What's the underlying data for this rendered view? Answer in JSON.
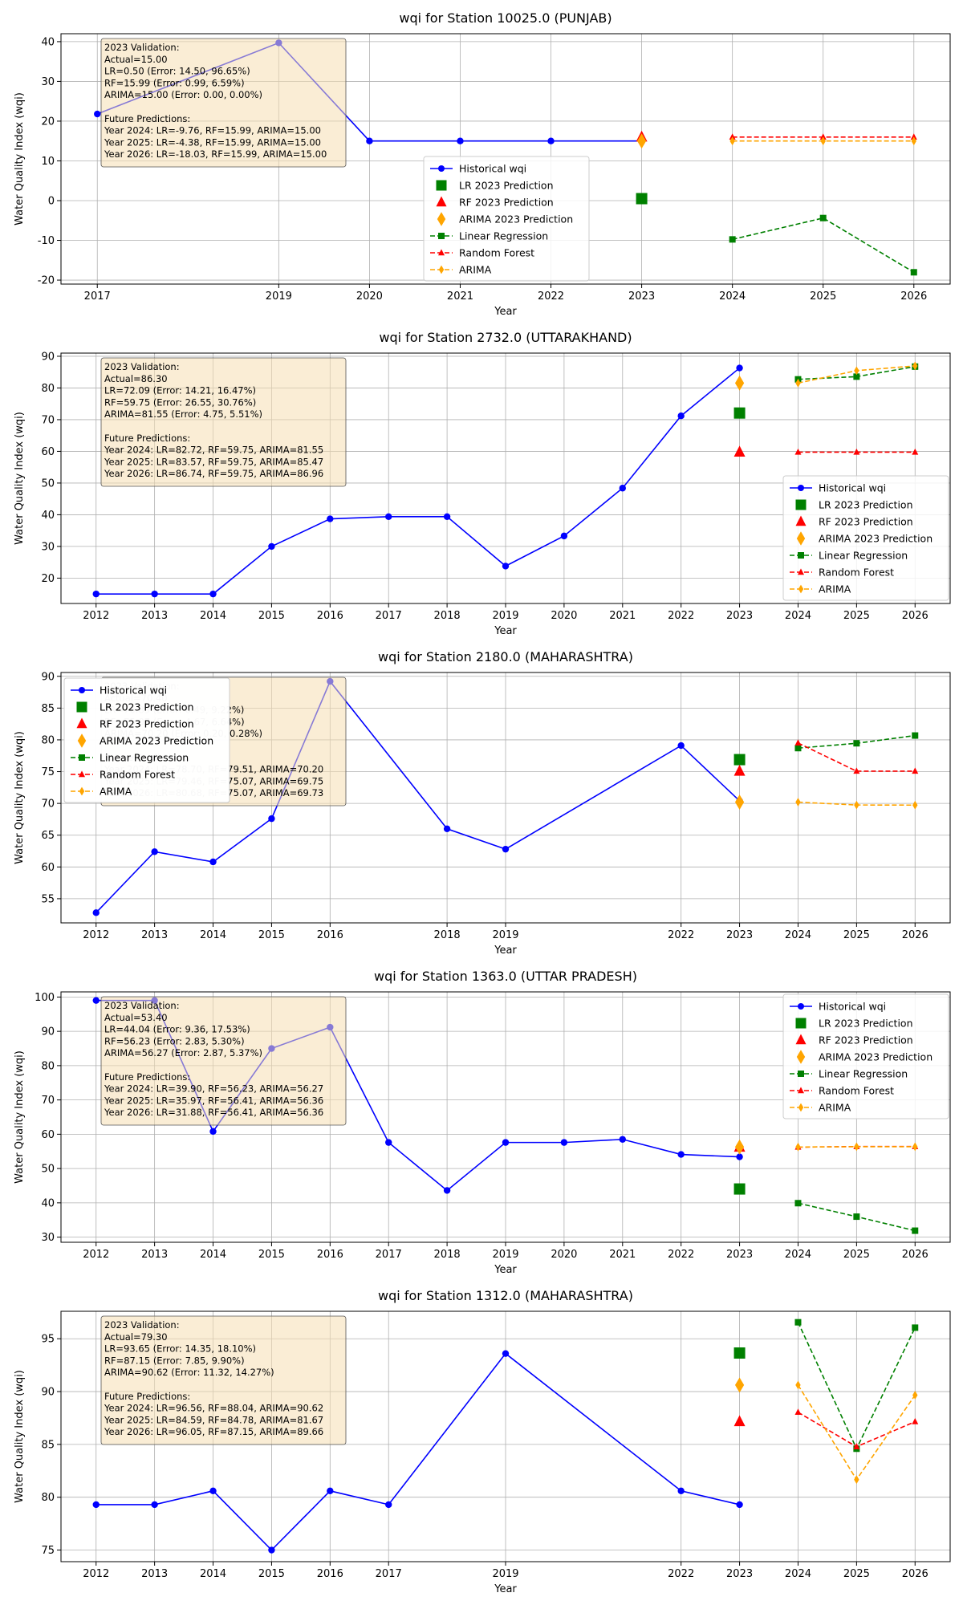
{
  "figure": {
    "background": "#ffffff"
  },
  "colors": {
    "historical": "#0000ff",
    "lr": "#008000",
    "rf": "#ff0000",
    "arima": "#ffa500",
    "textbox_bg": "#f5deb3",
    "grid": "#b0b0b0"
  },
  "chart_data": [
    {
      "type": "line",
      "title": "wqi for Station 10025.0 (PUNJAB)",
      "xlabel": "Year",
      "ylabel": "Water Quality Index (wqi)",
      "xlim": [
        2016.6,
        2026.4
      ],
      "ylim": [
        -21,
        42
      ],
      "xticks": [
        2017,
        2019,
        2020,
        2021,
        2022,
        2023,
        2024,
        2025,
        2026
      ],
      "yticks": [
        -20,
        -10,
        0,
        10,
        20,
        30,
        40
      ],
      "grid": true,
      "legend_loc": "lower-center",
      "textbox_loc": "top-left",
      "textbox": [
        "2023 Validation:",
        "Actual=15.00",
        "LR=0.50 (Error: 14.50, 96.65%)",
        "RF=15.99 (Error: 0.99, 6.59%)",
        "ARIMA=15.00 (Error: 0.00, 0.00%)",
        "",
        "Future Predictions:",
        "Year 2024: LR=-9.76, RF=15.99, ARIMA=15.00",
        "Year 2025: LR=-4.38, RF=15.99, ARIMA=15.00",
        "Year 2026: LR=-18.03, RF=15.99, ARIMA=15.00"
      ],
      "historical": {
        "name": "Historical wqi",
        "x": [
          2017,
          2019,
          2020,
          2021,
          2022,
          2023
        ],
        "y": [
          21.8,
          39.7,
          15.0,
          15.0,
          15.0,
          15.0
        ]
      },
      "pred2023": [
        {
          "name": "LR 2023 Prediction",
          "y": 0.5
        },
        {
          "name": "RF 2023 Prediction",
          "y": 15.99
        },
        {
          "name": "ARIMA 2023 Prediction",
          "y": 15.0
        }
      ],
      "future": {
        "x": [
          2024,
          2025,
          2026
        ],
        "series": [
          {
            "name": "Linear Regression",
            "values": [
              -9.76,
              -4.38,
              -18.03
            ]
          },
          {
            "name": "Random Forest",
            "values": [
              15.99,
              15.99,
              15.99
            ]
          },
          {
            "name": "ARIMA",
            "values": [
              15.0,
              15.0,
              15.0
            ]
          }
        ]
      }
    },
    {
      "type": "line",
      "title": "wqi for Station 2732.0 (UTTARAKHAND)",
      "xlabel": "Year",
      "ylabel": "Water Quality Index (wqi)",
      "xlim": [
        2011.4,
        2026.6
      ],
      "ylim": [
        12,
        91
      ],
      "xticks": [
        2012,
        2013,
        2014,
        2015,
        2016,
        2017,
        2018,
        2019,
        2020,
        2021,
        2022,
        2023,
        2024,
        2025,
        2026
      ],
      "yticks": [
        20,
        30,
        40,
        50,
        60,
        70,
        80,
        90
      ],
      "grid": true,
      "legend_loc": "lower-right",
      "textbox_loc": "top-left",
      "textbox": [
        "2023 Validation:",
        "Actual=86.30",
        "LR=72.09 (Error: 14.21, 16.47%)",
        "RF=59.75 (Error: 26.55, 30.76%)",
        "ARIMA=81.55 (Error: 4.75, 5.51%)",
        "",
        "Future Predictions:",
        "Year 2024: LR=82.72, RF=59.75, ARIMA=81.55",
        "Year 2025: LR=83.57, RF=59.75, ARIMA=85.47",
        "Year 2026: LR=86.74, RF=59.75, ARIMA=86.96"
      ],
      "historical": {
        "name": "Historical wqi",
        "x": [
          2012,
          2013,
          2014,
          2015,
          2016,
          2017,
          2018,
          2019,
          2020,
          2021,
          2022,
          2023
        ],
        "y": [
          15.0,
          15.0,
          15.0,
          30.0,
          38.7,
          39.4,
          39.4,
          23.8,
          33.3,
          48.4,
          71.2,
          86.3
        ]
      },
      "pred2023": [
        {
          "name": "LR 2023 Prediction",
          "y": 72.09
        },
        {
          "name": "RF 2023 Prediction",
          "y": 59.75
        },
        {
          "name": "ARIMA 2023 Prediction",
          "y": 81.55
        }
      ],
      "future": {
        "x": [
          2024,
          2025,
          2026
        ],
        "series": [
          {
            "name": "Linear Regression",
            "values": [
              82.72,
              83.57,
              86.74
            ]
          },
          {
            "name": "Random Forest",
            "values": [
              59.75,
              59.75,
              59.75
            ]
          },
          {
            "name": "ARIMA",
            "values": [
              81.55,
              85.47,
              86.96
            ]
          }
        ]
      }
    },
    {
      "type": "line",
      "title": "wqi for Station 2180.0 (MAHARASHTRA)",
      "xlabel": "Year",
      "ylabel": "Water Quality Index (wqi)",
      "xlim": [
        2011.4,
        2026.6
      ],
      "ylim": [
        51.2,
        90.6
      ],
      "xticks": [
        2012,
        2013,
        2014,
        2015,
        2016,
        2018,
        2019,
        2022,
        2023,
        2024,
        2025,
        2026
      ],
      "yticks": [
        55,
        60,
        65,
        70,
        75,
        80,
        85,
        90
      ],
      "grid": true,
      "legend_loc": "upper-left",
      "textbox_loc": "top-left",
      "textbox": [
        "2023 Validation:",
        "Actual=70.40",
        "LR=76.89 (Error: 6.49, 9.22%)",
        "RF=75.07 (Error: 4.67, 6.64%)",
        "ARIMA=70.20 (Error: 0.20, 0.28%)",
        "",
        "Future Predictions:",
        "Year 2024: LR=78.70, RF=79.51, ARIMA=70.20",
        "Year 2025: LR=79.46, RF=75.07, ARIMA=69.75",
        "Year 2026: LR=80.68, RF=75.07, ARIMA=69.73"
      ],
      "historical": {
        "name": "Historical wqi",
        "x": [
          2012,
          2013,
          2014,
          2015,
          2016,
          2018,
          2019,
          2022,
          2023
        ],
        "y": [
          52.8,
          62.4,
          60.8,
          67.6,
          89.2,
          66.0,
          62.8,
          79.1,
          70.4
        ]
      },
      "pred2023": [
        {
          "name": "LR 2023 Prediction",
          "y": 76.89
        },
        {
          "name": "RF 2023 Prediction",
          "y": 75.07
        },
        {
          "name": "ARIMA 2023 Prediction",
          "y": 70.2
        }
      ],
      "future": {
        "x": [
          2024,
          2025,
          2026
        ],
        "series": [
          {
            "name": "Linear Regression",
            "values": [
              78.7,
              79.46,
              80.68
            ]
          },
          {
            "name": "Random Forest",
            "values": [
              79.51,
              75.07,
              75.07
            ]
          },
          {
            "name": "ARIMA",
            "values": [
              70.2,
              69.75,
              69.73
            ]
          }
        ]
      }
    },
    {
      "type": "line",
      "title": "wqi for Station 1363.0 (UTTAR PRADESH)",
      "xlabel": "Year",
      "ylabel": "Water Quality Index (wqi)",
      "xlim": [
        2011.4,
        2026.6
      ],
      "ylim": [
        28.5,
        101.5
      ],
      "xticks": [
        2012,
        2013,
        2014,
        2015,
        2016,
        2017,
        2018,
        2019,
        2020,
        2021,
        2022,
        2023,
        2024,
        2025,
        2026
      ],
      "yticks": [
        30,
        40,
        50,
        60,
        70,
        80,
        90,
        100
      ],
      "grid": true,
      "legend_loc": "upper-right",
      "textbox_loc": "top-left",
      "textbox": [
        "2023 Validation:",
        "Actual=53.40",
        "LR=44.04 (Error: 9.36, 17.53%)",
        "RF=56.23 (Error: 2.83, 5.30%)",
        "ARIMA=56.27 (Error: 2.87, 5.37%)",
        "",
        "Future Predictions:",
        "Year 2024: LR=39.90, RF=56.23, ARIMA=56.27",
        "Year 2025: LR=35.97, RF=56.41, ARIMA=56.36",
        "Year 2026: LR=31.88, RF=56.41, ARIMA=56.36"
      ],
      "historical": {
        "name": "Historical wqi",
        "x": [
          2012,
          2013,
          2014,
          2015,
          2016,
          2017,
          2018,
          2019,
          2020,
          2021,
          2022,
          2023
        ],
        "y": [
          99.0,
          99.0,
          60.8,
          85.0,
          91.2,
          57.6,
          43.6,
          57.6,
          57.6,
          58.5,
          54.1,
          53.4
        ]
      },
      "pred2023": [
        {
          "name": "LR 2023 Prediction",
          "y": 44.04
        },
        {
          "name": "RF 2023 Prediction",
          "y": 56.23
        },
        {
          "name": "ARIMA 2023 Prediction",
          "y": 56.27
        }
      ],
      "future": {
        "x": [
          2024,
          2025,
          2026
        ],
        "series": [
          {
            "name": "Linear Regression",
            "values": [
              39.9,
              35.97,
              31.88
            ]
          },
          {
            "name": "Random Forest",
            "values": [
              56.23,
              56.41,
              56.41
            ]
          },
          {
            "name": "ARIMA",
            "values": [
              56.27,
              56.36,
              56.36
            ]
          }
        ]
      }
    },
    {
      "type": "line",
      "title": "wqi for Station 1312.0 (MAHARASHTRA)",
      "xlabel": "Year",
      "ylabel": "Water Quality Index (wqi)",
      "xlim": [
        2011.4,
        2026.6
      ],
      "ylim": [
        73.9,
        97.6
      ],
      "xticks": [
        2012,
        2013,
        2014,
        2015,
        2016,
        2017,
        2019,
        2022,
        2023,
        2024,
        2025,
        2026
      ],
      "yticks": [
        75,
        80,
        85,
        90,
        95
      ],
      "grid": true,
      "legend_loc": "upper-left",
      "textbox_loc": "top-left",
      "textbox": [
        "2023 Validation:",
        "Actual=79.30",
        "LR=93.65 (Error: 14.35, 18.10%)",
        "RF=87.15 (Error: 7.85, 9.90%)",
        "ARIMA=90.62 (Error: 11.32, 14.27%)",
        "",
        "Future Predictions:",
        "Year 2024: LR=96.56, RF=88.04, ARIMA=90.62",
        "Year 2025: LR=84.59, RF=84.78, ARIMA=81.67",
        "Year 2026: LR=96.05, RF=87.15, ARIMA=89.66"
      ],
      "historical": {
        "name": "Historical wqi",
        "x": [
          2012,
          2013,
          2014,
          2015,
          2016,
          2017,
          2019,
          2022,
          2023
        ],
        "y": [
          79.3,
          79.3,
          80.6,
          75.0,
          80.6,
          79.3,
          93.6,
          80.6,
          79.3
        ]
      },
      "pred2023": [
        {
          "name": "LR 2023 Prediction",
          "y": 93.65
        },
        {
          "name": "RF 2023 Prediction",
          "y": 87.15
        },
        {
          "name": "ARIMA 2023 Prediction",
          "y": 90.62
        }
      ],
      "future": {
        "x": [
          2024,
          2025,
          2026
        ],
        "series": [
          {
            "name": "Linear Regression",
            "values": [
              96.56,
              84.59,
              96.05
            ]
          },
          {
            "name": "Random Forest",
            "values": [
              88.04,
              84.78,
              87.15
            ]
          },
          {
            "name": "ARIMA",
            "values": [
              90.62,
              81.67,
              89.66
            ]
          }
        ]
      }
    }
  ]
}
